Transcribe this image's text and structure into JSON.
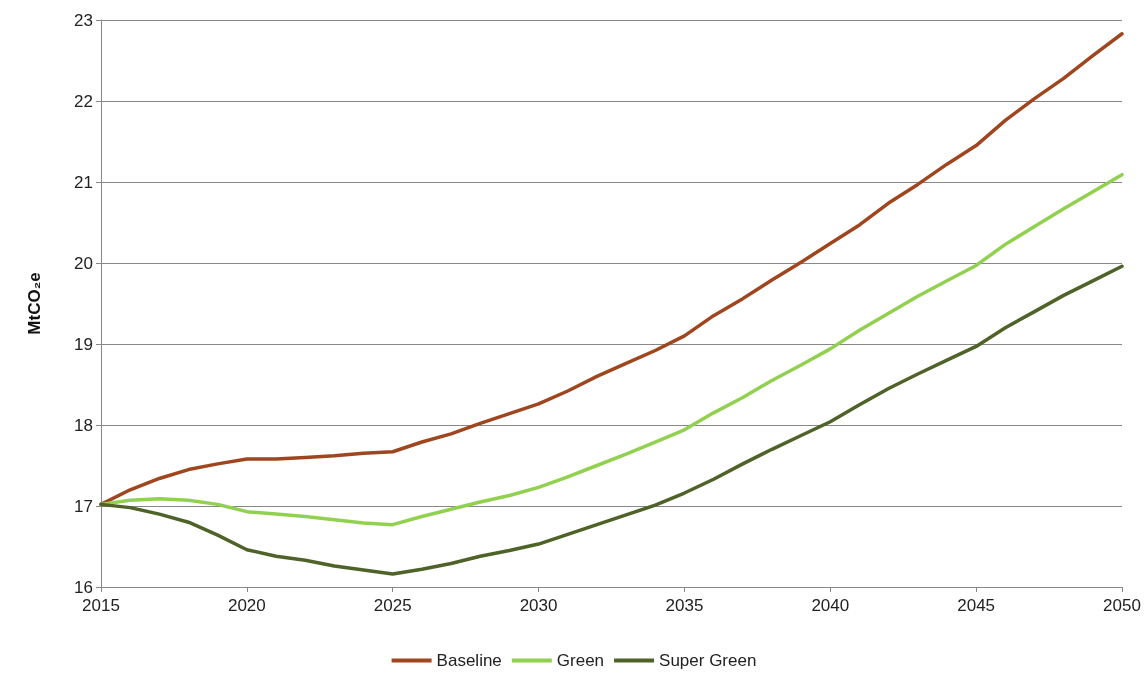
{
  "chart_data": {
    "type": "line",
    "ylabel": "MtCO₂e",
    "x": [
      2015,
      2016,
      2017,
      2018,
      2019,
      2020,
      2021,
      2022,
      2023,
      2024,
      2025,
      2026,
      2027,
      2028,
      2029,
      2030,
      2031,
      2032,
      2033,
      2034,
      2035,
      2036,
      2037,
      2038,
      2039,
      2040,
      2041,
      2042,
      2043,
      2044,
      2045,
      2046,
      2047,
      2048,
      2049,
      2050
    ],
    "series": [
      {
        "name": "Baseline",
        "color": "#a0461e",
        "values": [
          17.02,
          17.2,
          17.34,
          17.45,
          17.52,
          17.58,
          17.58,
          17.6,
          17.62,
          17.65,
          17.67,
          17.79,
          17.89,
          18.02,
          18.14,
          18.26,
          18.42,
          18.6,
          18.76,
          18.92,
          19.1,
          19.35,
          19.56,
          19.79,
          20.01,
          20.24,
          20.47,
          20.74,
          20.97,
          21.22,
          21.45,
          21.76,
          22.03,
          22.28,
          22.56,
          22.83
        ]
      },
      {
        "name": "Green",
        "color": "#92d050",
        "values": [
          17.02,
          17.07,
          17.09,
          17.07,
          17.02,
          16.93,
          16.9,
          16.87,
          16.83,
          16.79,
          16.77,
          16.87,
          16.96,
          17.05,
          17.13,
          17.23,
          17.36,
          17.5,
          17.64,
          17.79,
          17.94,
          18.15,
          18.34,
          18.55,
          18.74,
          18.94,
          19.17,
          19.38,
          19.59,
          19.78,
          19.97,
          20.23,
          20.45,
          20.67,
          20.88,
          21.09
        ]
      },
      {
        "name": "Super Green",
        "color": "#4f6228",
        "values": [
          17.02,
          16.98,
          16.9,
          16.8,
          16.64,
          16.46,
          16.38,
          16.33,
          16.26,
          16.21,
          16.16,
          16.22,
          16.29,
          16.38,
          16.45,
          16.53,
          16.65,
          16.77,
          16.89,
          17.01,
          17.16,
          17.33,
          17.52,
          17.7,
          17.87,
          18.04,
          18.25,
          18.45,
          18.63,
          18.8,
          18.97,
          19.2,
          19.4,
          19.6,
          19.78,
          19.96
        ]
      }
    ],
    "xlim": [
      2015,
      2050
    ],
    "xticks": [
      2015,
      2020,
      2025,
      2030,
      2035,
      2040,
      2045,
      2050
    ],
    "ylim": [
      16,
      23
    ],
    "yticks": [
      16,
      17,
      18,
      19,
      20,
      21,
      22,
      23
    ],
    "grid": "y",
    "legend": "bottom",
    "marker": "none",
    "line_style": "solid"
  }
}
